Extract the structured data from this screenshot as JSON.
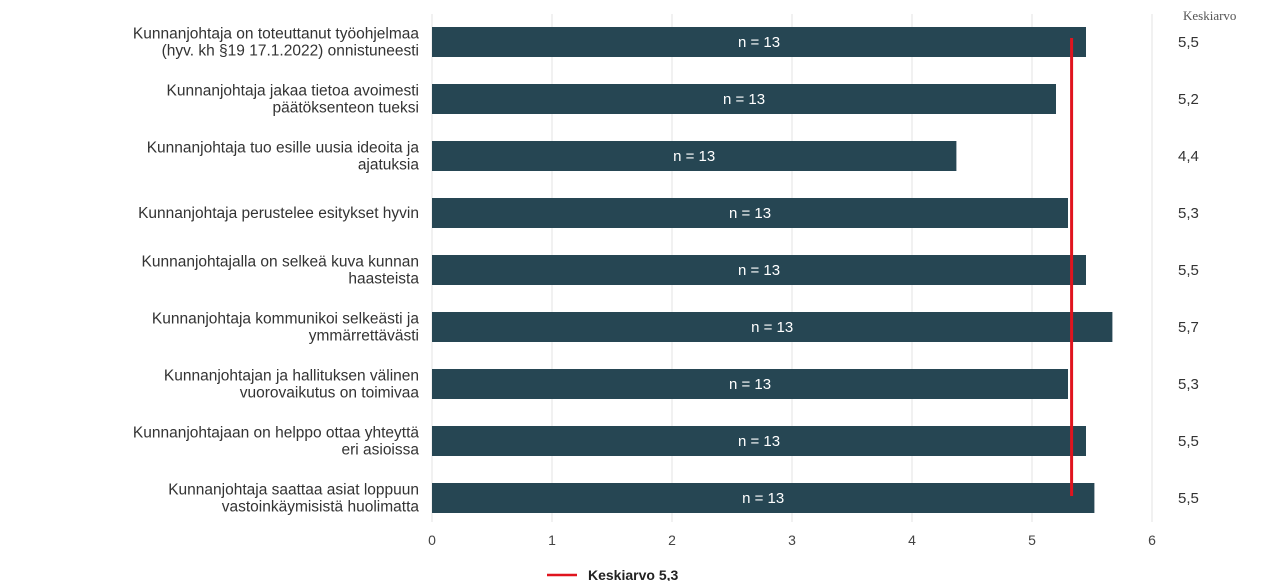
{
  "chart_data": {
    "type": "bar",
    "orientation": "horizontal",
    "categories": [
      [
        "Kunnanjohtaja on toteuttanut työohjelmaa",
        "(hyv. kh §19 17.1.2022) onnistuneesti"
      ],
      [
        "Kunnanjohtaja jakaa tietoa avoimesti",
        "päätöksenteon tueksi"
      ],
      [
        "Kunnanjohtaja tuo esille uusia ideoita ja",
        "ajatuksia"
      ],
      [
        "Kunnanjohtaja perustelee esitykset hyvin"
      ],
      [
        "Kunnanjohtajalla on selkeä kuva kunnan",
        "haasteista"
      ],
      [
        "Kunnanjohtaja kommunikoi selkeästi ja",
        "ymmärrettävästi"
      ],
      [
        "Kunnanjohtajan ja hallituksen välinen",
        "vuorovaikutus on toimivaa"
      ],
      [
        "Kunnanjohtajaan on helppo ottaa yhteyttä",
        "eri asioissa"
      ],
      [
        "Kunnanjohtaja saattaa asiat loppuun",
        "vastoinkäymisistä huolimatta"
      ]
    ],
    "values": [
      5.45,
      5.2,
      4.37,
      5.3,
      5.45,
      5.67,
      5.3,
      5.45,
      5.52
    ],
    "bar_labels": [
      "n = 13",
      "n = 13",
      "n = 13",
      "n = 13",
      "n = 13",
      "n = 13",
      "n = 13",
      "n = 13",
      "n = 13"
    ],
    "value_column_header": "Keskiarvo",
    "value_column": [
      "5,5",
      "5,2",
      "4,4",
      "5,3",
      "5,5",
      "5,7",
      "5,3",
      "5,5",
      "5,5"
    ],
    "xlim": [
      0,
      6
    ],
    "xticks": [
      "0",
      "1",
      "2",
      "3",
      "4",
      "5",
      "6"
    ],
    "reference_line": {
      "value": 5.33,
      "label": "Keskiarvo 5,3"
    },
    "grid": "vertical",
    "legend": "bottom-center",
    "colors": {
      "bar": "#264653",
      "reference_line": "#e0141e",
      "grid": "#e3e3e3"
    }
  }
}
